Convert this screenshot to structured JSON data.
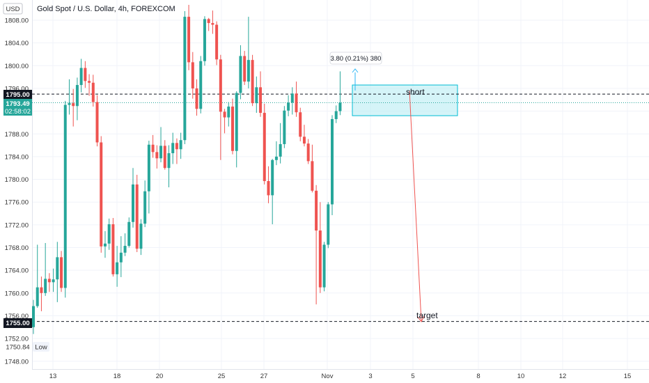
{
  "header": {
    "currency": "USD",
    "title": "Gold Spot / U.S. Dollar, 4h, FOREXCOM"
  },
  "colors": {
    "up": "#26a69a",
    "down": "#ef5350",
    "zone_fill": "#b2ebf2",
    "zone_stroke": "#00bcd4",
    "arrow": "#ef5350",
    "current_line": "#26a69a"
  },
  "labels": {
    "short": "short",
    "target": "target",
    "measure": "3.80 (0.21%) 380",
    "low": "Low",
    "low_price": "1750.84",
    "short_price": "1795.00",
    "target_price": "1755.00",
    "current_price": "1793.49",
    "countdown": "02:58:02"
  },
  "chart_data": {
    "type": "candlestick",
    "title": "Gold Spot / U.S. Dollar, 4h, FOREXCOM",
    "y_ticks": [
      "1808.00",
      "1804.00",
      "1800.00",
      "1796.00",
      "1792.00",
      "1788.00",
      "1784.00",
      "1780.00",
      "1776.00",
      "1772.00",
      "1768.00",
      "1764.00",
      "1760.00",
      "1756.00",
      "1752.00",
      "1748.00"
    ],
    "x_ticks": [
      "13",
      "18",
      "20",
      "25",
      "27",
      "Nov",
      "3",
      "5",
      "8",
      "10",
      "12",
      "15"
    ],
    "ylim": [
      1747,
      1811
    ],
    "levels": {
      "short": 1795.0,
      "target": 1755.0,
      "current": 1793.49,
      "low": 1750.84
    },
    "zone": {
      "top": 1796.6,
      "bottom": 1791.2
    },
    "candles": [
      [
        1754.0,
        1758.8,
        1752.8,
        1757.7
      ],
      [
        1757.7,
        1768.5,
        1757.4,
        1761.0
      ],
      [
        1761.0,
        1762.9,
        1756.8,
        1760.0
      ],
      [
        1760.0,
        1768.8,
        1759.5,
        1762.5
      ],
      [
        1762.5,
        1763.5,
        1760.2,
        1761.9
      ],
      [
        1761.9,
        1764.3,
        1760.2,
        1762.4
      ],
      [
        1762.4,
        1769.0,
        1758.4,
        1766.3
      ],
      [
        1766.3,
        1767.4,
        1760.2,
        1760.9
      ],
      [
        1760.9,
        1793.8,
        1759.2,
        1793.1
      ],
      [
        1793.1,
        1797.6,
        1791.4,
        1793.4
      ],
      [
        1793.4,
        1795.9,
        1789.3,
        1792.9
      ],
      [
        1792.9,
        1797.9,
        1790.4,
        1796.6
      ],
      [
        1796.6,
        1801.2,
        1795.3,
        1799.6
      ],
      [
        1799.6,
        1800.8,
        1796.1,
        1797.3
      ],
      [
        1797.3,
        1798.5,
        1794.7,
        1797.0
      ],
      [
        1797.0,
        1798.4,
        1792.8,
        1793.6
      ],
      [
        1793.6,
        1794.8,
        1785.8,
        1786.5
      ],
      [
        1786.5,
        1787.6,
        1767.1,
        1768.2
      ],
      [
        1768.2,
        1770.9,
        1766.2,
        1768.7
      ],
      [
        1768.7,
        1773.1,
        1767.6,
        1772.1
      ],
      [
        1772.1,
        1773.2,
        1762.9,
        1763.3
      ],
      [
        1763.3,
        1768.3,
        1761.1,
        1765.4
      ],
      [
        1765.4,
        1770.0,
        1762.8,
        1767.1
      ],
      [
        1767.1,
        1770.5,
        1766.5,
        1768.3
      ],
      [
        1768.3,
        1773.3,
        1768.0,
        1772.5
      ],
      [
        1772.5,
        1782.0,
        1771.5,
        1779.1
      ],
      [
        1779.1,
        1780.8,
        1767.2,
        1767.8
      ],
      [
        1767.8,
        1773.0,
        1766.7,
        1772.2
      ],
      [
        1772.2,
        1779.8,
        1771.6,
        1777.9
      ],
      [
        1777.9,
        1786.8,
        1774.0,
        1786.1
      ],
      [
        1786.1,
        1787.8,
        1783.8,
        1784.8
      ],
      [
        1784.8,
        1786.0,
        1781.9,
        1783.7
      ],
      [
        1783.7,
        1789.2,
        1783.0,
        1785.9
      ],
      [
        1785.9,
        1786.9,
        1781.7,
        1782.0
      ],
      [
        1782.0,
        1786.0,
        1778.6,
        1784.6
      ],
      [
        1784.6,
        1788.2,
        1782.7,
        1786.4
      ],
      [
        1786.4,
        1787.2,
        1782.7,
        1785.3
      ],
      [
        1785.3,
        1788.2,
        1783.6,
        1786.9
      ],
      [
        1786.9,
        1809.6,
        1786.2,
        1808.6
      ],
      [
        1808.6,
        1810.7,
        1799.2,
        1800.6
      ],
      [
        1800.6,
        1802.4,
        1794.2,
        1796.0
      ],
      [
        1796.0,
        1797.6,
        1791.2,
        1792.4
      ],
      [
        1792.4,
        1801.7,
        1791.6,
        1800.8
      ],
      [
        1800.8,
        1808.7,
        1800.0,
        1808.2
      ],
      [
        1808.2,
        1808.4,
        1806.1,
        1807.5
      ],
      [
        1807.5,
        1809.7,
        1805.6,
        1807.2
      ],
      [
        1807.2,
        1807.8,
        1800.1,
        1801.1
      ],
      [
        1801.1,
        1801.9,
        1783.4,
        1791.9
      ],
      [
        1791.9,
        1792.4,
        1788.1,
        1790.9
      ],
      [
        1790.9,
        1793.6,
        1789.3,
        1792.8
      ],
      [
        1792.8,
        1794.2,
        1784.4,
        1785.0
      ],
      [
        1785.0,
        1795.5,
        1782.1,
        1795.2
      ],
      [
        1795.2,
        1803.6,
        1794.1,
        1801.7
      ],
      [
        1801.7,
        1802.6,
        1796.6,
        1797.2
      ],
      [
        1797.2,
        1808.6,
        1796.0,
        1801.0
      ],
      [
        1801.0,
        1801.9,
        1792.9,
        1793.4
      ],
      [
        1793.4,
        1798.1,
        1791.7,
        1796.2
      ],
      [
        1796.2,
        1799.0,
        1791.0,
        1791.7
      ],
      [
        1791.7,
        1793.3,
        1779.1,
        1779.7
      ],
      [
        1779.7,
        1782.3,
        1775.8,
        1777.2
      ],
      [
        1777.2,
        1783.6,
        1772.1,
        1783.4
      ],
      [
        1783.4,
        1786.7,
        1782.5,
        1784.0
      ],
      [
        1784.0,
        1789.9,
        1782.8,
        1786.2
      ],
      [
        1786.2,
        1792.9,
        1785.5,
        1792.1
      ],
      [
        1792.1,
        1794.8,
        1791.1,
        1793.5
      ],
      [
        1793.5,
        1796.2,
        1791.4,
        1795.1
      ],
      [
        1795.1,
        1797.2,
        1791.0,
        1791.8
      ],
      [
        1791.8,
        1792.6,
        1786.7,
        1787.5
      ],
      [
        1787.5,
        1789.6,
        1785.8,
        1786.3
      ],
      [
        1786.3,
        1787.1,
        1782.7,
        1783.2
      ],
      [
        1783.2,
        1786.1,
        1777.7,
        1778.0
      ],
      [
        1778.0,
        1779.0,
        1758.0,
        1771.0
      ],
      [
        1771.0,
        1776.0,
        1760.0,
        1761.0
      ],
      [
        1761.0,
        1769.0,
        1760.3,
        1768.5
      ],
      [
        1768.5,
        1776.0,
        1767.9,
        1775.6
      ],
      [
        1775.6,
        1791.3,
        1773.7,
        1790.6
      ],
      [
        1790.6,
        1793.0,
        1789.9,
        1792.0
      ],
      [
        1792.0,
        1799.0,
        1791.3,
        1793.49
      ]
    ]
  }
}
